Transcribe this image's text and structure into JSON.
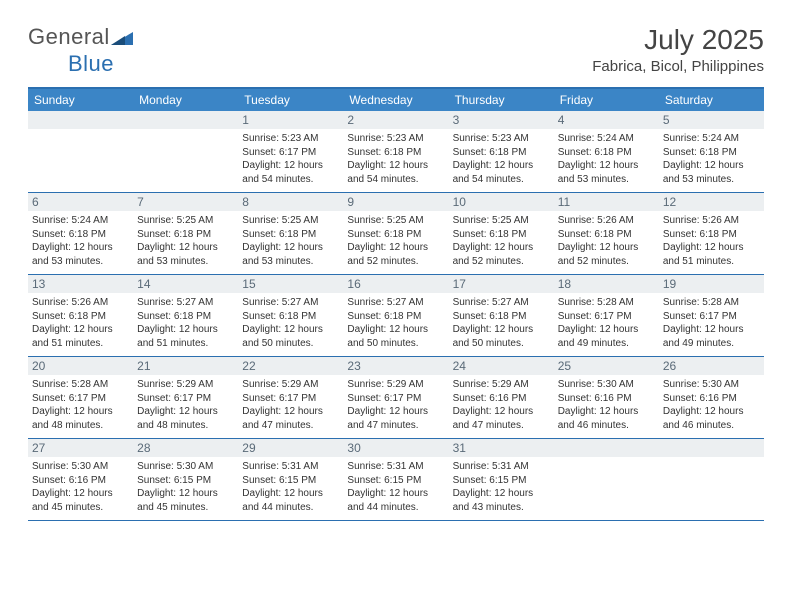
{
  "logo": {
    "primary": "General",
    "secondary": "Blue"
  },
  "title": "July 2025",
  "location": "Fabrica, Bicol, Philippines",
  "colors": {
    "header_bg": "#3b85c6",
    "border": "#2b6fb0",
    "daynum_bg": "#eceff1",
    "daynum_text": "#5a6a78",
    "text": "#333333"
  },
  "weekdays": [
    "Sunday",
    "Monday",
    "Tuesday",
    "Wednesday",
    "Thursday",
    "Friday",
    "Saturday"
  ],
  "weeks": [
    [
      {
        "empty": true
      },
      {
        "empty": true
      },
      {
        "num": "1",
        "sunrise": "5:23 AM",
        "sunset": "6:17 PM",
        "daylight": "12 hours and 54 minutes."
      },
      {
        "num": "2",
        "sunrise": "5:23 AM",
        "sunset": "6:18 PM",
        "daylight": "12 hours and 54 minutes."
      },
      {
        "num": "3",
        "sunrise": "5:23 AM",
        "sunset": "6:18 PM",
        "daylight": "12 hours and 54 minutes."
      },
      {
        "num": "4",
        "sunrise": "5:24 AM",
        "sunset": "6:18 PM",
        "daylight": "12 hours and 53 minutes."
      },
      {
        "num": "5",
        "sunrise": "5:24 AM",
        "sunset": "6:18 PM",
        "daylight": "12 hours and 53 minutes."
      }
    ],
    [
      {
        "num": "6",
        "sunrise": "5:24 AM",
        "sunset": "6:18 PM",
        "daylight": "12 hours and 53 minutes."
      },
      {
        "num": "7",
        "sunrise": "5:25 AM",
        "sunset": "6:18 PM",
        "daylight": "12 hours and 53 minutes."
      },
      {
        "num": "8",
        "sunrise": "5:25 AM",
        "sunset": "6:18 PM",
        "daylight": "12 hours and 53 minutes."
      },
      {
        "num": "9",
        "sunrise": "5:25 AM",
        "sunset": "6:18 PM",
        "daylight": "12 hours and 52 minutes."
      },
      {
        "num": "10",
        "sunrise": "5:25 AM",
        "sunset": "6:18 PM",
        "daylight": "12 hours and 52 minutes."
      },
      {
        "num": "11",
        "sunrise": "5:26 AM",
        "sunset": "6:18 PM",
        "daylight": "12 hours and 52 minutes."
      },
      {
        "num": "12",
        "sunrise": "5:26 AM",
        "sunset": "6:18 PM",
        "daylight": "12 hours and 51 minutes."
      }
    ],
    [
      {
        "num": "13",
        "sunrise": "5:26 AM",
        "sunset": "6:18 PM",
        "daylight": "12 hours and 51 minutes."
      },
      {
        "num": "14",
        "sunrise": "5:27 AM",
        "sunset": "6:18 PM",
        "daylight": "12 hours and 51 minutes."
      },
      {
        "num": "15",
        "sunrise": "5:27 AM",
        "sunset": "6:18 PM",
        "daylight": "12 hours and 50 minutes."
      },
      {
        "num": "16",
        "sunrise": "5:27 AM",
        "sunset": "6:18 PM",
        "daylight": "12 hours and 50 minutes."
      },
      {
        "num": "17",
        "sunrise": "5:27 AM",
        "sunset": "6:18 PM",
        "daylight": "12 hours and 50 minutes."
      },
      {
        "num": "18",
        "sunrise": "5:28 AM",
        "sunset": "6:17 PM",
        "daylight": "12 hours and 49 minutes."
      },
      {
        "num": "19",
        "sunrise": "5:28 AM",
        "sunset": "6:17 PM",
        "daylight": "12 hours and 49 minutes."
      }
    ],
    [
      {
        "num": "20",
        "sunrise": "5:28 AM",
        "sunset": "6:17 PM",
        "daylight": "12 hours and 48 minutes."
      },
      {
        "num": "21",
        "sunrise": "5:29 AM",
        "sunset": "6:17 PM",
        "daylight": "12 hours and 48 minutes."
      },
      {
        "num": "22",
        "sunrise": "5:29 AM",
        "sunset": "6:17 PM",
        "daylight": "12 hours and 47 minutes."
      },
      {
        "num": "23",
        "sunrise": "5:29 AM",
        "sunset": "6:17 PM",
        "daylight": "12 hours and 47 minutes."
      },
      {
        "num": "24",
        "sunrise": "5:29 AM",
        "sunset": "6:16 PM",
        "daylight": "12 hours and 47 minutes."
      },
      {
        "num": "25",
        "sunrise": "5:30 AM",
        "sunset": "6:16 PM",
        "daylight": "12 hours and 46 minutes."
      },
      {
        "num": "26",
        "sunrise": "5:30 AM",
        "sunset": "6:16 PM",
        "daylight": "12 hours and 46 minutes."
      }
    ],
    [
      {
        "num": "27",
        "sunrise": "5:30 AM",
        "sunset": "6:16 PM",
        "daylight": "12 hours and 45 minutes."
      },
      {
        "num": "28",
        "sunrise": "5:30 AM",
        "sunset": "6:15 PM",
        "daylight": "12 hours and 45 minutes."
      },
      {
        "num": "29",
        "sunrise": "5:31 AM",
        "sunset": "6:15 PM",
        "daylight": "12 hours and 44 minutes."
      },
      {
        "num": "30",
        "sunrise": "5:31 AM",
        "sunset": "6:15 PM",
        "daylight": "12 hours and 44 minutes."
      },
      {
        "num": "31",
        "sunrise": "5:31 AM",
        "sunset": "6:15 PM",
        "daylight": "12 hours and 43 minutes."
      },
      {
        "empty": true
      },
      {
        "empty": true
      }
    ]
  ],
  "labels": {
    "sunrise": "Sunrise:",
    "sunset": "Sunset:",
    "daylight": "Daylight:"
  }
}
